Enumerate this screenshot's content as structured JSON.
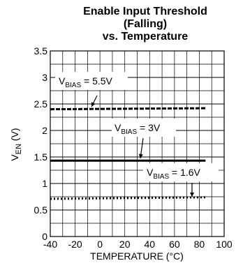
{
  "chart_data": {
    "type": "line",
    "title_lines": [
      "Enable Input Threshold",
      "(Falling)",
      "vs. Temperature"
    ],
    "xlabel": "TEMPERATURE (°C)",
    "ylabel": {
      "main": "V",
      "sub": "EN",
      "unit": " (V)"
    },
    "xlim": [
      -40,
      100
    ],
    "ylim": [
      0,
      3.5
    ],
    "xticks": [
      -40,
      -20,
      0,
      20,
      40,
      60,
      80,
      100
    ],
    "yticks": [
      0,
      0.5,
      1,
      1.5,
      2,
      2.5,
      3,
      3.5
    ],
    "xtick_labels": [
      "-40",
      "-20",
      "0",
      "20",
      "40",
      "60",
      "80",
      "100"
    ],
    "ytick_labels": [
      "0",
      "0.5",
      "1",
      "1.5",
      "2",
      "2.5",
      "3",
      "3.5"
    ],
    "grid": true,
    "series": [
      {
        "name": "VBIAS = 5.5V",
        "style": "dashed",
        "x": [
          -40,
          85
        ],
        "y": [
          2.4,
          2.42
        ]
      },
      {
        "name": "VBIAS = 3V",
        "style": "solid",
        "x": [
          -40,
          85
        ],
        "y": [
          1.43,
          1.43
        ]
      },
      {
        "name": "VBIAS = 1.6V",
        "style": "dotted",
        "x": [
          -40,
          85
        ],
        "y": [
          0.71,
          0.74
        ]
      }
    ],
    "annotations": [
      {
        "main": "V",
        "sub": "BIAS",
        "rest": " = 5.5V",
        "series": 0
      },
      {
        "main": "V",
        "sub": "BIAS",
        "rest": " = 3V",
        "series": 1
      },
      {
        "main": "V",
        "sub": "BIAS",
        "rest": " = 1.6V",
        "series": 2
      }
    ]
  }
}
